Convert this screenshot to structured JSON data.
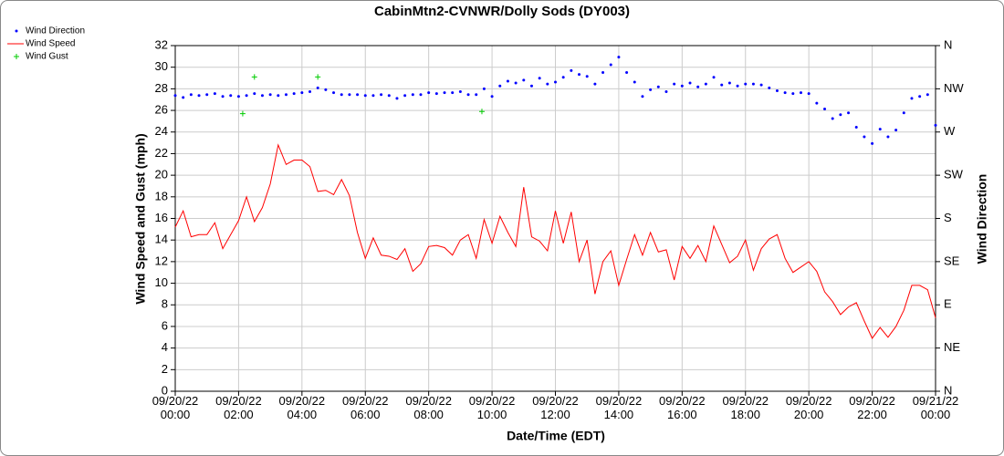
{
  "chart_data": {
    "type": "line",
    "title": "CabinMtn2-CVNWR/Dolly Sods (DY003)",
    "xlabel": "Date/Time (EDT)",
    "ylabel": "Wind Speed and Gust (mph)",
    "y2label": "Wind Direction",
    "xlim": [
      0,
      24
    ],
    "xticks": [
      {
        "value": 0,
        "label": "09/20/22\n00:00"
      },
      {
        "value": 2,
        "label": "09/20/22\n02:00"
      },
      {
        "value": 4,
        "label": "09/20/22\n04:00"
      },
      {
        "value": 6,
        "label": "09/20/22\n06:00"
      },
      {
        "value": 8,
        "label": "09/20/22\n08:00"
      },
      {
        "value": 10,
        "label": "09/20/22\n10:00"
      },
      {
        "value": 12,
        "label": "09/20/22\n12:00"
      },
      {
        "value": 14,
        "label": "09/20/22\n14:00"
      },
      {
        "value": 16,
        "label": "09/20/22\n16:00"
      },
      {
        "value": 18,
        "label": "09/20/22\n18:00"
      },
      {
        "value": 20,
        "label": "09/20/22\n20:00"
      },
      {
        "value": 22,
        "label": "09/20/22\n22:00"
      },
      {
        "value": 24,
        "label": "09/21/22\n00:00"
      }
    ],
    "ylim": [
      0,
      32
    ],
    "yticks": [
      0,
      2,
      4,
      6,
      8,
      10,
      12,
      14,
      16,
      18,
      20,
      22,
      24,
      26,
      28,
      30,
      32
    ],
    "y2lim": [
      0,
      360
    ],
    "y2ticks": [
      {
        "value": 0,
        "label": "N"
      },
      {
        "value": 45,
        "label": "NE"
      },
      {
        "value": 90,
        "label": "E"
      },
      {
        "value": 135,
        "label": "SE"
      },
      {
        "value": 180,
        "label": "S"
      },
      {
        "value": 225,
        "label": "SW"
      },
      {
        "value": 270,
        "label": "W"
      },
      {
        "value": 315,
        "label": "NW"
      },
      {
        "value": 360,
        "label": "N"
      }
    ],
    "grid": true,
    "legend": "upper left",
    "x": [
      0,
      0.25,
      0.5,
      0.75,
      1,
      1.25,
      1.5,
      1.75,
      2,
      2.25,
      2.5,
      2.75,
      3,
      3.25,
      3.5,
      3.75,
      4,
      4.25,
      4.5,
      4.75,
      5,
      5.25,
      5.5,
      5.75,
      6,
      6.25,
      6.5,
      6.75,
      7,
      7.25,
      7.5,
      7.75,
      8,
      8.25,
      8.5,
      8.75,
      9,
      9.25,
      9.5,
      9.75,
      10,
      10.25,
      10.5,
      10.75,
      11,
      11.25,
      11.5,
      11.75,
      12,
      12.25,
      12.5,
      12.75,
      13,
      13.25,
      13.5,
      13.75,
      14,
      14.25,
      14.5,
      14.75,
      15,
      15.25,
      15.5,
      15.75,
      16,
      16.25,
      16.5,
      16.75,
      17,
      17.25,
      17.5,
      17.75,
      18,
      18.25,
      18.5,
      18.75,
      19,
      19.25,
      19.5,
      19.75,
      20,
      20.25,
      20.5,
      20.75,
      21,
      21.25,
      21.5,
      21.75,
      22,
      22.25,
      22.5,
      22.75,
      23,
      23.25,
      23.5,
      23.75,
      24
    ],
    "series": [
      {
        "name": "Wind Direction",
        "color": "#0000ff",
        "axis": "y2",
        "marker": "dot",
        "values": [
          308,
          306,
          309,
          308,
          309,
          310,
          307,
          308,
          307,
          308,
          310,
          308,
          309,
          308,
          309,
          310,
          311,
          312,
          316,
          314,
          311,
          309,
          309,
          309,
          308,
          308,
          309,
          308,
          305,
          308,
          309,
          309,
          311,
          310,
          311,
          311,
          312,
          309,
          309,
          315,
          307,
          318,
          323,
          321,
          324,
          318,
          326,
          320,
          322,
          327,
          334,
          330,
          328,
          320,
          332,
          340,
          348,
          332,
          322,
          307,
          314,
          317,
          312,
          320,
          318,
          321,
          317,
          320,
          327,
          319,
          321,
          318,
          320,
          320,
          319,
          316,
          313,
          311,
          310,
          311,
          310,
          300,
          294,
          284,
          288,
          290,
          275,
          265,
          258,
          273,
          265,
          272,
          290,
          305,
          307,
          309,
          277
        ]
      },
      {
        "name": "Wind Speed",
        "color": "#ff0000",
        "marker": "line",
        "values": [
          15.2,
          16.7,
          14.3,
          14.5,
          14.5,
          15.6,
          13.2,
          14.5,
          15.8,
          18.0,
          15.7,
          17.0,
          19.2,
          22.8,
          21.0,
          21.4,
          21.4,
          20.8,
          18.5,
          18.6,
          18.2,
          19.6,
          18.1,
          14.7,
          12.3,
          14.2,
          12.6,
          12.5,
          12.2,
          13.2,
          11.1,
          11.8,
          13.4,
          13.5,
          13.3,
          12.6,
          14.0,
          14.5,
          12.3,
          15.9,
          13.7,
          16.2,
          14.7,
          13.4,
          18.9,
          14.3,
          13.9,
          13.0,
          16.7,
          13.7,
          16.6,
          12.0,
          14.0,
          9.0,
          12.0,
          13.0,
          9.8,
          12.2,
          14.5,
          12.6,
          14.7,
          12.9,
          13.1,
          10.3,
          13.4,
          12.3,
          13.5,
          12.0,
          15.3,
          13.6,
          11.9,
          12.5,
          14.0,
          11.2,
          13.2,
          14.1,
          14.5,
          12.3,
          11.0,
          11.5,
          12.0,
          11.1,
          9.2,
          8.3,
          7.1,
          7.8,
          8.2,
          6.5,
          4.9,
          5.9,
          5.0,
          6.0,
          7.5,
          9.8,
          9.8,
          9.4,
          6.8
        ]
      },
      {
        "name": "Wind Gust",
        "color": "#00cc00",
        "marker": "plus",
        "x": [
          2.13,
          2.5,
          4.5,
          9.68
        ],
        "values": [
          25.7,
          29.1,
          29.1,
          25.9
        ]
      }
    ]
  }
}
